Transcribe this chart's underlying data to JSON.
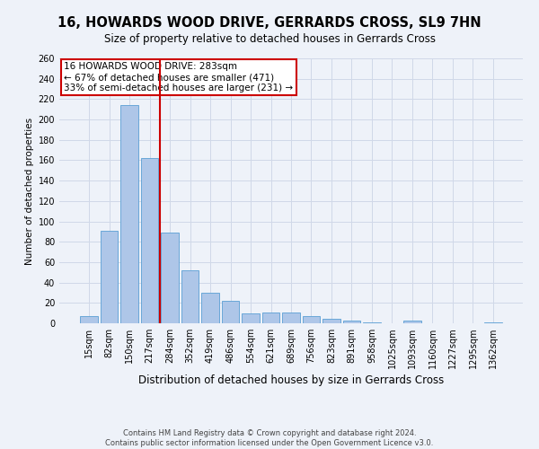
{
  "title": "16, HOWARDS WOOD DRIVE, GERRARDS CROSS, SL9 7HN",
  "subtitle": "Size of property relative to detached houses in Gerrards Cross",
  "xlabel": "Distribution of detached houses by size in Gerrards Cross",
  "ylabel": "Number of detached properties",
  "categories": [
    "15sqm",
    "82sqm",
    "150sqm",
    "217sqm",
    "284sqm",
    "352sqm",
    "419sqm",
    "486sqm",
    "554sqm",
    "621sqm",
    "689sqm",
    "756sqm",
    "823sqm",
    "891sqm",
    "958sqm",
    "1025sqm",
    "1093sqm",
    "1160sqm",
    "1227sqm",
    "1295sqm",
    "1362sqm"
  ],
  "values": [
    7,
    91,
    214,
    162,
    89,
    52,
    30,
    22,
    10,
    11,
    11,
    7,
    4,
    3,
    1,
    0,
    3,
    0,
    0,
    0,
    1
  ],
  "bar_color": "#aec6e8",
  "bar_edge_color": "#5a9fd4",
  "grid_color": "#d0d8e8",
  "bg_color": "#eef2f9",
  "vline_x": 3.5,
  "vline_color": "#cc0000",
  "annotation_text": "16 HOWARDS WOOD DRIVE: 283sqm\n← 67% of detached houses are smaller (471)\n33% of semi-detached houses are larger (231) →",
  "annotation_box_color": "white",
  "annotation_border_color": "#cc0000",
  "footer_text": "Contains HM Land Registry data © Crown copyright and database right 2024.\nContains public sector information licensed under the Open Government Licence v3.0.",
  "ylim": [
    0,
    260
  ],
  "yticks": [
    0,
    20,
    40,
    60,
    80,
    100,
    120,
    140,
    160,
    180,
    200,
    220,
    240,
    260
  ],
  "title_fontsize": 10.5,
  "subtitle_fontsize": 8.5,
  "xlabel_fontsize": 8.5,
  "ylabel_fontsize": 7.5,
  "tick_fontsize": 7.0,
  "annot_fontsize": 7.5,
  "footer_fontsize": 6.0
}
